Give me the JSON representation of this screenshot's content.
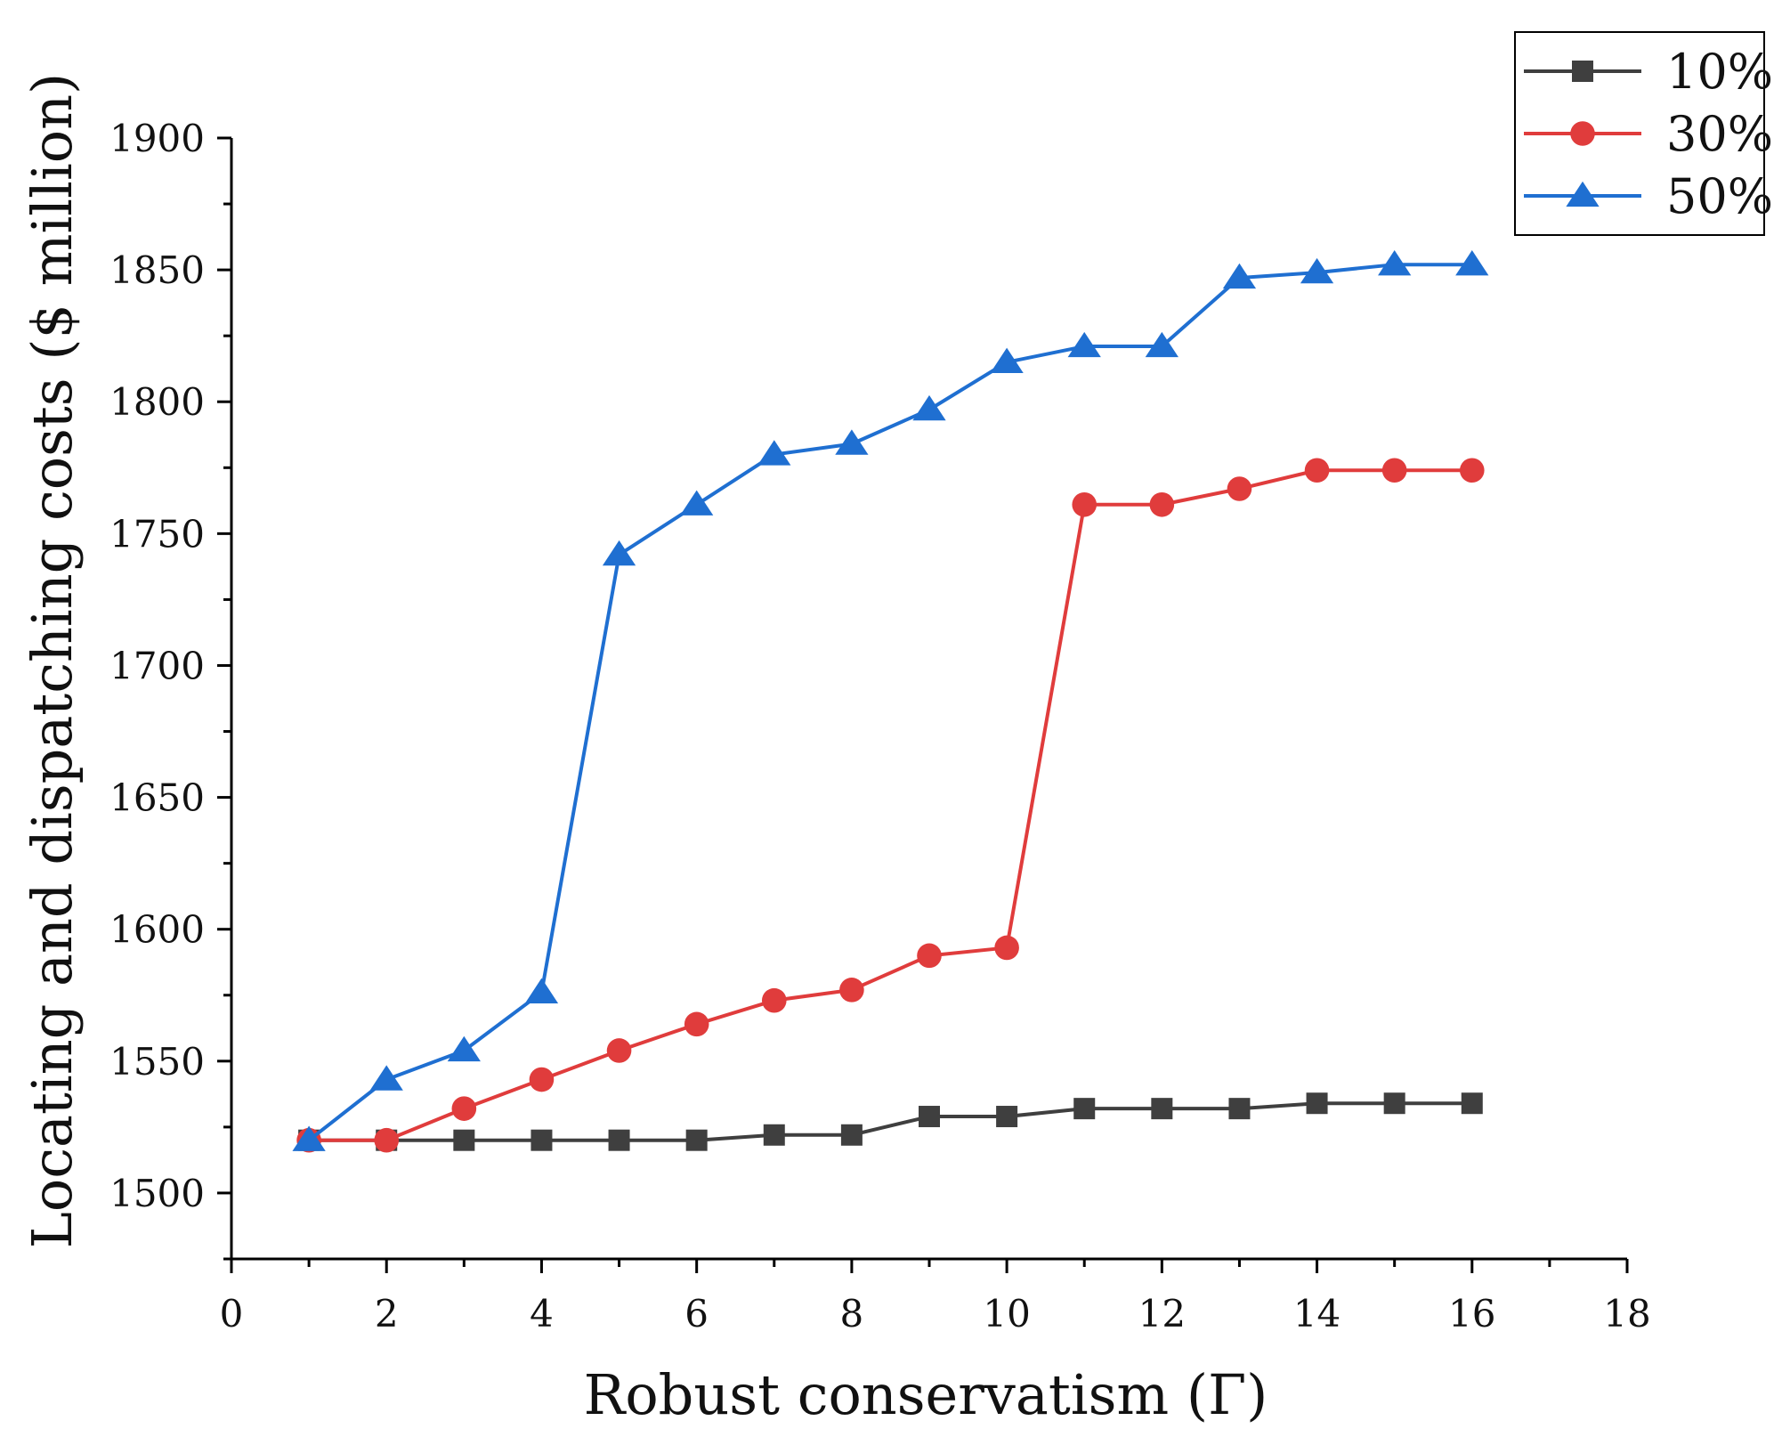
{
  "chart_data": {
    "type": "line",
    "title": "",
    "xlabel": "Robust conservatism (Γ)",
    "ylabel": "Locating and dispatching costs ($ million)",
    "xlim": [
      0,
      18
    ],
    "ylim": [
      1475,
      1900
    ],
    "xticks": [
      "0",
      "2",
      "4",
      "6",
      "8",
      "10",
      "12",
      "14",
      "16",
      "18"
    ],
    "yticks": [
      "1500",
      "1550",
      "1600",
      "1650",
      "1700",
      "1750",
      "1800",
      "1850",
      "1900"
    ],
    "legend_position": "top-right",
    "x": [
      1,
      2,
      3,
      4,
      5,
      6,
      7,
      8,
      9,
      10,
      11,
      12,
      13,
      14,
      15,
      16
    ],
    "series": [
      {
        "name": "10%",
        "marker": "square",
        "color": "#3f3f3f",
        "values": [
          1520,
          1520,
          1520,
          1520,
          1520,
          1520,
          1522,
          1522,
          1529,
          1529,
          1532,
          1532,
          1532,
          1534,
          1534,
          1534
        ]
      },
      {
        "name": "30%",
        "marker": "circle",
        "color": "#e03c3c",
        "values": [
          1520,
          1520,
          1532,
          1543,
          1554,
          1564,
          1573,
          1577,
          1590,
          1593,
          1761,
          1761,
          1767,
          1774,
          1774,
          1774
        ]
      },
      {
        "name": "50%",
        "marker": "triangle",
        "color": "#1f6fd1",
        "values": [
          1520,
          1543,
          1554,
          1576,
          1742,
          1761,
          1780,
          1784,
          1797,
          1815,
          1821,
          1821,
          1847,
          1849,
          1852,
          1852
        ]
      }
    ]
  }
}
